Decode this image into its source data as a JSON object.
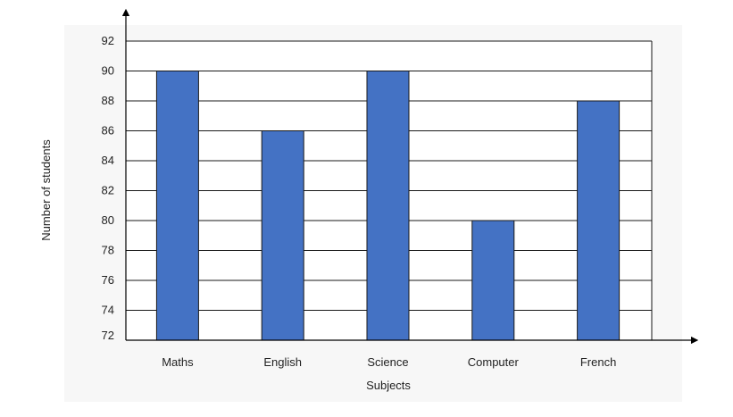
{
  "chart_data": {
    "type": "bar",
    "title": "",
    "xlabel": "Subjects",
    "ylabel": "Number of students",
    "categories": [
      "Maths",
      "English",
      "Science",
      "Computer",
      "French"
    ],
    "values": [
      90,
      86,
      90,
      80,
      88
    ],
    "ylim": [
      72,
      92
    ],
    "yticks": [
      "72",
      "74",
      "76",
      "78",
      "80",
      "82",
      "84",
      "86",
      "88",
      "90",
      "92"
    ],
    "grid": true,
    "legend": "none",
    "colors": {
      "bar": "#4472c4",
      "bar_edge": "#1a1a1a",
      "grid": "#1a1a1a",
      "axis": "#000000",
      "plot_bg": "#f7f7f7"
    }
  }
}
